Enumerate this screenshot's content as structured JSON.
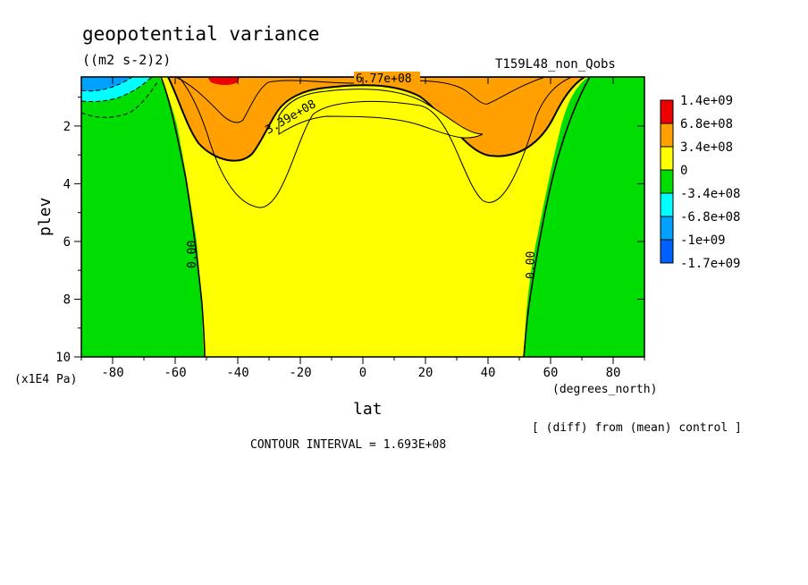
{
  "chart_data": {
    "type": "contour",
    "title": "geopotential variance",
    "units": "((m2 s-2)2)",
    "run_label": "T159L48_non_Qobs",
    "xlabel": "lat",
    "x_unit_label": "(degrees_north)",
    "ylabel": "plev",
    "y_unit_label": "(x1E4 Pa)",
    "xlim": [
      -90,
      90
    ],
    "ylim": [
      0.3,
      10
    ],
    "y_inverted": true,
    "x_ticks": [
      -80,
      -60,
      -40,
      -20,
      0,
      20,
      40,
      60,
      80
    ],
    "x_tick_labels": [
      "-80",
      "-60",
      "-40",
      "-20",
      "0",
      "20",
      "40",
      "60",
      "80"
    ],
    "y_ticks": [
      2,
      4,
      6,
      8,
      10
    ],
    "y_tick_labels": [
      "2",
      "4",
      "6",
      "8",
      "10"
    ],
    "colorbar": {
      "labels": [
        "1.4e+09",
        "6.8e+08",
        "3.4e+08",
        "0",
        "-3.4e+08",
        "-6.8e+08",
        "-1e+09",
        "-1.7e+09"
      ],
      "colors": [
        "#ee0000",
        "#ffa000",
        "#ffff00",
        "#00dd00",
        "#00ffff",
        "#00a0ff",
        "#0060ff",
        "#ffffff"
      ]
    },
    "contour_labels": [
      "6.77e+08",
      "3.39e+08",
      "0.00",
      "0.00"
    ],
    "regions": [
      {
        "level": "-1.7e+09 to -6.8e+08",
        "color": "#00a0ff",
        "lat_range": [
          -90,
          -75
        ],
        "plev_range": [
          0.3,
          0.6
        ]
      },
      {
        "level": "-6.8e+08 to -3.4e+08",
        "color": "#00ffff",
        "lat_range": [
          -90,
          -68
        ],
        "plev_range": [
          0.3,
          0.9
        ]
      },
      {
        "level": "-3.4e+08 to 0",
        "color": "#00dd00",
        "lat_range": [
          -90,
          -52
        ],
        "plev_range": [
          0.3,
          10
        ]
      },
      {
        "level": "-3.4e+08 to 0",
        "color": "#00dd00",
        "lat_range": [
          52,
          90
        ],
        "plev_range": [
          0.3,
          10
        ]
      },
      {
        "level": "0 to 3.4e+08",
        "color": "#ffff00",
        "lat_range": [
          -60,
          60
        ],
        "plev_range": [
          0.3,
          10
        ]
      },
      {
        "level": "3.4e+08 to 6.8e+08",
        "color": "#ffa000",
        "lat_range": [
          -63,
          62
        ],
        "plev_range": [
          0.3,
          3.1
        ]
      },
      {
        "level": "6.8e+08 to 1.4e+09",
        "color": "#ee0000",
        "lat_range": [
          -45,
          -38
        ],
        "plev_range": [
          0.3,
          0.5
        ]
      }
    ]
  },
  "footer": {
    "contour_interval": "CONTOUR INTERVAL = 1.693E+08",
    "diff_note": "[ (diff) from (mean) control ]"
  }
}
